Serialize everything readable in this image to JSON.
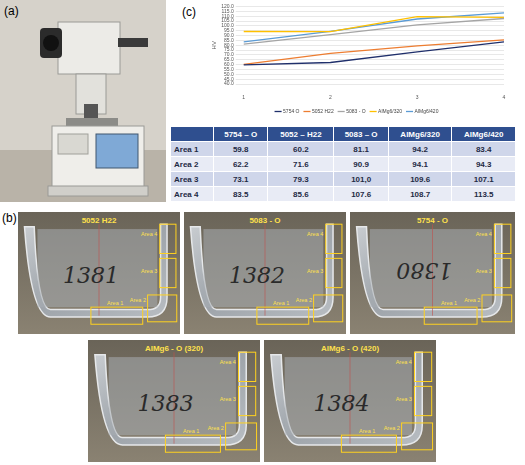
{
  "panel_labels": [
    "(a)",
    "(b)",
    "(c)"
  ],
  "photos": [
    {
      "title": "5052 H22",
      "marking": "1381",
      "areas": [
        "Area 4",
        "Area 3",
        "Area 2",
        "Area 1"
      ]
    },
    {
      "title": "5083 - O",
      "marking": "1382",
      "areas": [
        "Area 4",
        "Area 3",
        "Area 2",
        "Area 1"
      ]
    },
    {
      "title": "5754 - O",
      "marking": "1380",
      "areas": [
        "Area 4",
        "Area 3",
        "Area 2",
        "Area 1"
      ]
    },
    {
      "title": "AlMg6 - O (320)",
      "marking": "1383",
      "areas": [
        "Area 4",
        "Area 3",
        "Area 2",
        "Area 1"
      ]
    },
    {
      "title": "AlMg6 - O (420)",
      "marking": "1384",
      "areas": [
        "Area 4",
        "Area 3",
        "Area 2",
        "Area 1"
      ]
    }
  ],
  "table": {
    "header": [
      "",
      "5754 – O",
      "5052 – H22",
      "5083 – O",
      "AlMg6/320",
      "AlMg6/420"
    ],
    "rows": [
      [
        "Area 1",
        "59.8",
        "60.2",
        "81.1",
        "94.2",
        "83.4"
      ],
      [
        "Area 2",
        "62.2",
        "71.6",
        "90.9",
        "94.1",
        "94.3"
      ],
      [
        "Area 3",
        "73.1",
        "79.3",
        "101,0",
        "109.6",
        "107.1"
      ],
      [
        "Area 4",
        "83.5",
        "85.6",
        "107.6",
        "108.7",
        "113.5"
      ]
    ]
  },
  "chart_data": {
    "type": "line",
    "y_label": "HV",
    "categories": [
      "1",
      "2",
      "3",
      "4"
    ],
    "series": [
      {
        "name": "5754 O",
        "color": "#1f2f6b",
        "values": [
          59.8,
          62.2,
          73.1,
          83.5
        ]
      },
      {
        "name": "5052 H22",
        "color": "#ed7d31",
        "values": [
          60.2,
          71.6,
          79.3,
          85.6
        ]
      },
      {
        "name": "5083 - O",
        "color": "#a5a5a5",
        "values": [
          81.1,
          90.9,
          101.0,
          107.6
        ]
      },
      {
        "name": "AlMg6/320",
        "color": "#ffc000",
        "values": [
          94.2,
          94.1,
          109.6,
          108.7
        ]
      },
      {
        "name": "AlMg6/420",
        "color": "#5b9bd5",
        "values": [
          83.4,
          94.3,
          107.1,
          113.5
        ]
      }
    ],
    "ylim": [
      40,
      120
    ],
    "yticks": [
      {
        "value": 40,
        "label": "40.0"
      },
      {
        "value": 45,
        "label": "45.0"
      },
      {
        "value": 50,
        "label": "50.0"
      },
      {
        "value": 55,
        "label": "55.0"
      },
      {
        "value": 60,
        "label": "60.0"
      },
      {
        "value": 65,
        "label": "65.0"
      },
      {
        "value": 70,
        "label": "70.0"
      },
      {
        "value": 75,
        "label": "75.0"
      },
      {
        "value": 80,
        "label": "80.0"
      },
      {
        "value": 85,
        "label": "85.0"
      },
      {
        "value": 90,
        "label": "90.0"
      },
      {
        "value": 95,
        "label": "95.0"
      },
      {
        "value": 100,
        "label": "100.0"
      },
      {
        "value": 105,
        "label": "105.0"
      },
      {
        "value": 110,
        "label": "110.0"
      },
      {
        "value": 115,
        "label": "115.0"
      },
      {
        "value": 120,
        "label": "120.0"
      }
    ],
    "grid": true,
    "legend": "bottom"
  }
}
